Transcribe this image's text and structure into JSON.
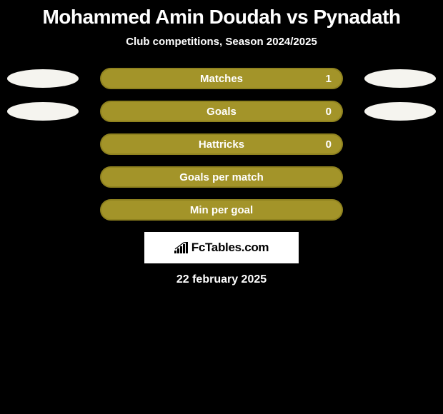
{
  "title": "Mohammed Amin Doudah vs Pynadath",
  "subtitle": "Club competitions, Season 2024/2025",
  "colors": {
    "background": "#000000",
    "text": "#ffffff",
    "accent_olive": "#a39429",
    "ellipse_light": "#f5f4ef",
    "bar_border": "#8f821f"
  },
  "rows": [
    {
      "label": "Matches",
      "value": "1",
      "fill": "#a39429",
      "left_ellipse": "#f5f4ef",
      "right_ellipse": "#f5f4ef",
      "show_ellipses": true
    },
    {
      "label": "Goals",
      "value": "0",
      "fill": "#a39429",
      "left_ellipse": "#f5f4ef",
      "right_ellipse": "#f5f4ef",
      "show_ellipses": true
    },
    {
      "label": "Hattricks",
      "value": "0",
      "fill": "#a39429",
      "show_ellipses": false
    },
    {
      "label": "Goals per match",
      "value": "",
      "fill": "#a39429",
      "show_ellipses": false
    },
    {
      "label": "Min per goal",
      "value": "",
      "fill": "#a39429",
      "show_ellipses": false
    }
  ],
  "logo": {
    "text": "FcTables.com",
    "background": "#ffffff",
    "text_color": "#000000"
  },
  "date": "22 february 2025"
}
